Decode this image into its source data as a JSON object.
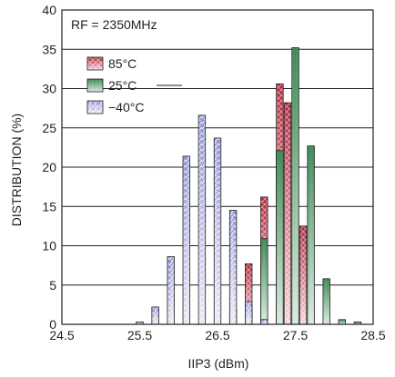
{
  "chart_data": {
    "type": "bar",
    "title": "",
    "xlabel": "IIP3 (dBm)",
    "ylabel": "DISTRIBUTION (%)",
    "xlim": [
      24.5,
      28.5
    ],
    "ylim": [
      0,
      40
    ],
    "xticks": [
      "24.5",
      "25.5",
      "26.5",
      "27.5",
      "28.5"
    ],
    "yticks": [
      "0",
      "5",
      "10",
      "15",
      "20",
      "25",
      "30",
      "35",
      "40"
    ],
    "grid": true,
    "bin_width": 0.1,
    "annotation": "RF = 2350MHz",
    "legend_position": "top-left",
    "series": [
      {
        "name": "85°C",
        "color": "#b3263a",
        "pattern": "crosshatch",
        "x": [
          26.7,
          26.9,
          27.1,
          27.3,
          27.4,
          27.6
        ],
        "values": [
          1.8,
          7.7,
          16.2,
          30.6,
          28.2,
          12.5
        ]
      },
      {
        "name": "25°C",
        "color": "#3c8a55",
        "pattern": "vertical",
        "x": [
          26.9,
          27.1,
          27.3,
          27.5,
          27.7,
          27.9,
          28.1,
          28.3
        ],
        "values": [
          2.7,
          10.9,
          22.1,
          35.2,
          22.7,
          5.8,
          0.6,
          0.3
        ]
      },
      {
        "name": "−40°C",
        "color": "#8a8ed0",
        "pattern": "diagonal",
        "x": [
          25.5,
          25.7,
          25.9,
          26.1,
          26.3,
          26.5,
          26.7,
          26.9,
          27.1
        ],
        "values": [
          0.3,
          2.2,
          8.6,
          21.4,
          26.6,
          23.7,
          14.5,
          2.9,
          0.6
        ]
      }
    ]
  }
}
